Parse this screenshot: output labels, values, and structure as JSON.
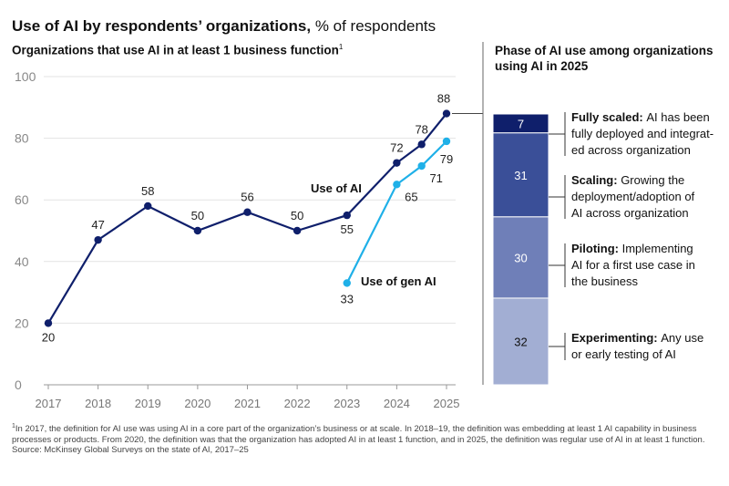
{
  "header": {
    "title_bold": "Use of AI by respondents’ organizations,",
    "title_rest": " % of respondents",
    "subtitle": "Organizations that use AI in at least 1 business function",
    "subtitle_sup": "1"
  },
  "colors": {
    "ai": "#0f1f6b",
    "genai": "#1fb0e8",
    "axis": "#999999",
    "grid": "#e3e3e3",
    "seg_fully": "#0f1f6b",
    "seg_scaling": "#3a4f98",
    "seg_piloting": "#6f7fb8",
    "seg_experimenting": "#a2aed3"
  },
  "chart_data": [
    {
      "type": "line",
      "title": "Organizations that use AI in at least 1 business function",
      "x": [
        2017,
        2018,
        2019,
        2020,
        2021,
        2022,
        2023,
        2024,
        2024.5,
        2025
      ],
      "x_tick_labels": [
        "2017",
        "2018",
        "2019",
        "2020",
        "2021",
        "2022",
        "2023",
        "2024",
        "2025"
      ],
      "x_ticks": [
        2017,
        2018,
        2019,
        2020,
        2021,
        2022,
        2023,
        2024,
        2025
      ],
      "y_ticks": [
        0,
        20,
        40,
        60,
        80,
        100
      ],
      "y_tick_labels": [
        "0",
        "20",
        "40",
        "60",
        "80",
        "100"
      ],
      "ylim": [
        0,
        100
      ],
      "grid": true,
      "series": [
        {
          "name": "Use of AI",
          "x": [
            2017,
            2018,
            2019,
            2020,
            2021,
            2022,
            2023,
            2024,
            2024.5,
            2025
          ],
          "values": [
            20,
            47,
            58,
            50,
            56,
            50,
            55,
            72,
            78,
            88
          ],
          "labels": [
            "20",
            "47",
            "58",
            "50",
            "56",
            "50",
            "55",
            "72",
            "78",
            "88"
          ]
        },
        {
          "name": "Use of gen AI",
          "x": [
            2023,
            2024,
            2024.5,
            2025
          ],
          "values": [
            33,
            65,
            71,
            79
          ],
          "labels": [
            "33",
            "65",
            "71",
            "79"
          ]
        }
      ]
    },
    {
      "type": "bar",
      "stacked": true,
      "title": "Phase of AI use among organizations using AI in 2025",
      "segments": [
        {
          "key": "fully",
          "value": 7,
          "label": "7",
          "name": "Fully scaled:",
          "desc": [
            "AI has been",
            "fully deployed and integrat-",
            "ed across organization"
          ]
        },
        {
          "key": "scaling",
          "value": 31,
          "label": "31",
          "name": "Scaling:",
          "desc": [
            "Growing the",
            "deployment/adoption of",
            "AI across organization"
          ]
        },
        {
          "key": "piloting",
          "value": 30,
          "label": "30",
          "name": "Piloting:",
          "desc": [
            "Implementing",
            "AI for a first use case in",
            "the business"
          ]
        },
        {
          "key": "experimenting",
          "value": 32,
          "label": "32",
          "name": "Experimenting:",
          "desc": [
            "Any use",
            "or early testing of AI"
          ]
        }
      ]
    }
  ],
  "right_panel": {
    "title": "Phase of AI use among organizations using AI in 2025"
  },
  "footnote": {
    "sup": "1",
    "text": "In 2017, the definition for AI use was using AI in a core part of the organization’s business or at scale. In 2018–19, the definition was embedding at least 1 AI capability in business processes or products. From 2020, the definition was that the organization has adopted AI in at least 1 function, and in 2025, the definition was regular use of AI in at least 1 function.",
    "source": "Source: McKinsey Global Surveys on the state of AI, 2017–25"
  }
}
